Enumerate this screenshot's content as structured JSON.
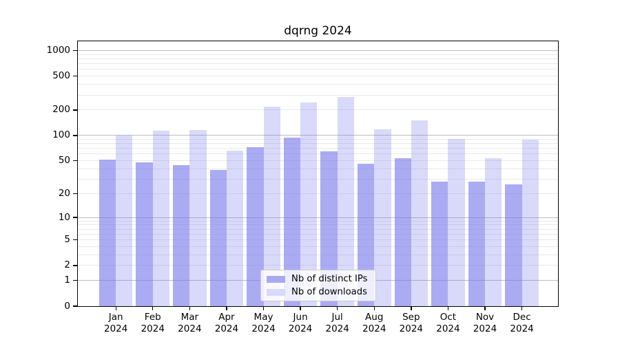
{
  "chart_data": {
    "type": "bar",
    "title": "dqrng 2024",
    "x_year": "2024",
    "categories": [
      "Jan",
      "Feb",
      "Mar",
      "Apr",
      "May",
      "Jun",
      "Jul",
      "Aug",
      "Sep",
      "Oct",
      "Nov",
      "Dec"
    ],
    "series": [
      {
        "name": "Nb of distinct IPs",
        "color": "#a9a9f2",
        "color_rgba": "rgba(119,119,235,0.62)",
        "values": [
          52,
          48,
          44,
          39,
          72,
          95,
          65,
          46,
          54,
          28,
          28,
          26
        ]
      },
      {
        "name": "Nb of downloads",
        "color": "#d9d9f9",
        "color_rgba": "rgba(119,119,235,0.28)",
        "values": [
          100,
          114,
          115,
          66,
          218,
          243,
          283,
          119,
          152,
          90,
          54,
          89
        ]
      }
    ],
    "y_axis": {
      "scale": "symlog",
      "tick_values": [
        0,
        1,
        2,
        5,
        10,
        20,
        50,
        100,
        200,
        500,
        1000
      ],
      "tick_labels": [
        "0",
        "1",
        "2",
        "5",
        "10",
        "20",
        "50",
        "100",
        "200",
        "500",
        "1000"
      ],
      "major_gridlines": [
        1,
        10,
        100,
        1000
      ],
      "minor_gridlines": [
        2,
        3,
        4,
        5,
        6,
        7,
        8,
        9,
        20,
        30,
        40,
        50,
        60,
        70,
        80,
        90,
        200,
        300,
        400,
        500,
        600,
        700,
        800,
        900
      ],
      "max": 1280
    },
    "grid": {
      "major_color": "#bcbcbc",
      "minor_color": "#e9e9e9"
    },
    "legend": {
      "position": "bottom-center"
    }
  }
}
